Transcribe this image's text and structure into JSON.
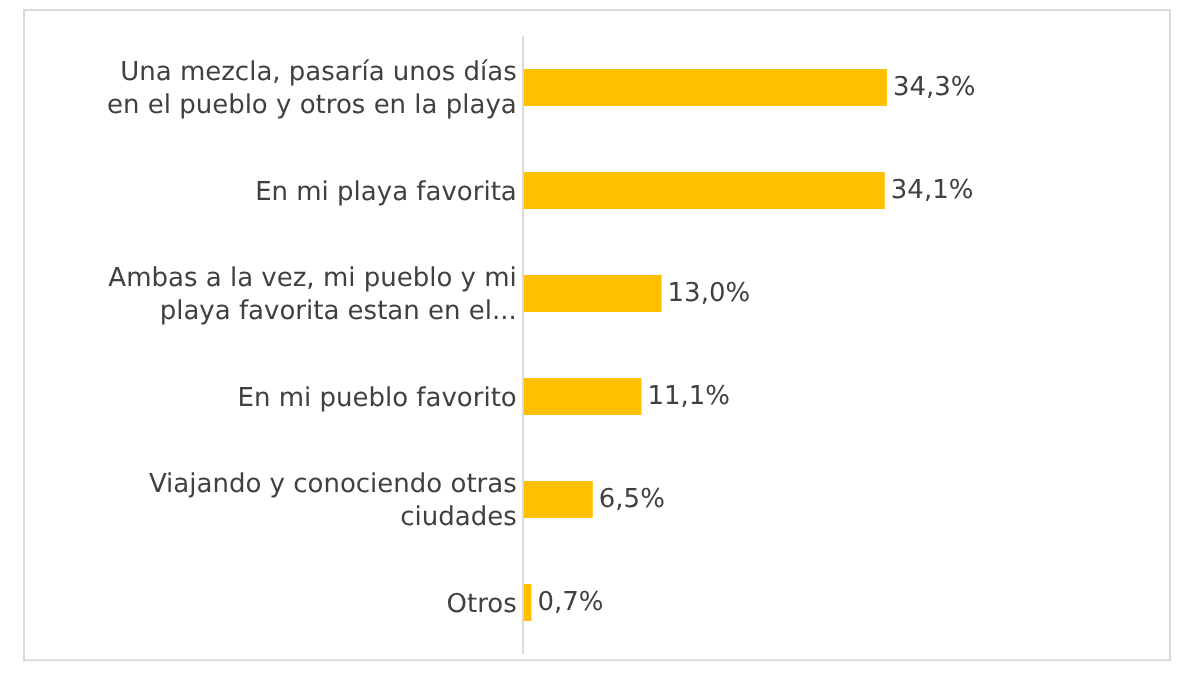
{
  "chart_data": {
    "type": "bar",
    "orientation": "horizontal",
    "categories": [
      "Una mezcla, pasaría unos días\nen el pueblo y otros en la playa",
      "En mi playa favorita",
      "Ambas a la vez, mi pueblo y mi\nplaya favorita estan en el...",
      "En mi pueblo favorito",
      "Viajando y conociendo otras\nciudades",
      "Otros"
    ],
    "values": [
      34.3,
      34.1,
      13.0,
      11.1,
      6.5,
      0.7
    ],
    "value_labels": [
      "34,3%",
      "34,1%",
      "13,0%",
      "11,1%",
      "6,5%",
      "0,7%"
    ],
    "color": "#ffc000",
    "legend": false
  }
}
